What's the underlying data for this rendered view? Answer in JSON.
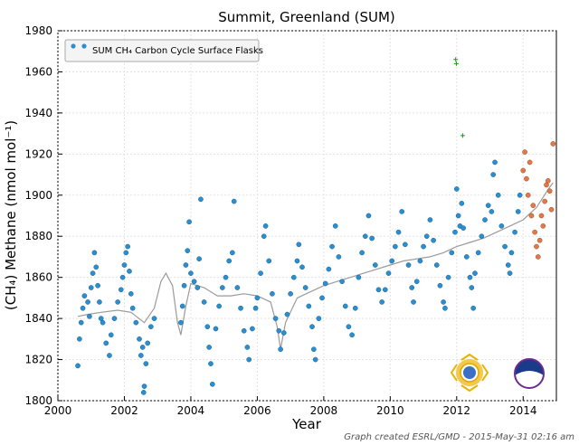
{
  "chart_data": {
    "type": "scatter",
    "title": "Summit, Greenland (SUM)",
    "xlabel": "Year",
    "ylabel": "(CH₄) Methane (nmol mol⁻¹)",
    "xlim": [
      2000,
      2015
    ],
    "ylim": [
      1800,
      1980
    ],
    "x_ticks": [
      2000,
      2002,
      2004,
      2006,
      2008,
      2010,
      2012,
      2014
    ],
    "y_ticks": [
      1800,
      1820,
      1840,
      1860,
      1880,
      1900,
      1920,
      1940,
      1960,
      1980
    ],
    "grid": true,
    "legend_position": "top-left",
    "credit": "Graph created ESRL/GMD - 2015-May-31 02:16 am",
    "colors": {
      "flask_points": "#2a8fd0",
      "preliminary_points": "#e07a4a",
      "flagged_points": "#1a9a1a",
      "smooth_curve": "#9a9a9a"
    },
    "logos": [
      "nsf-logo",
      "noaa-logo"
    ],
    "series": [
      {
        "name": "SUM CH₄ Carbon Cycle Surface Flasks",
        "kind": "points",
        "points": [
          [
            2000.6,
            1817
          ],
          [
            2000.65,
            1830
          ],
          [
            2000.7,
            1838
          ],
          [
            2000.75,
            1845
          ],
          [
            2000.8,
            1851
          ],
          [
            2000.9,
            1848
          ],
          [
            2000.95,
            1841
          ],
          [
            2001.0,
            1855
          ],
          [
            2001.05,
            1862
          ],
          [
            2001.1,
            1872
          ],
          [
            2001.15,
            1865
          ],
          [
            2001.2,
            1856
          ],
          [
            2001.25,
            1848
          ],
          [
            2001.3,
            1840
          ],
          [
            2001.35,
            1838
          ],
          [
            2001.45,
            1828
          ],
          [
            2001.55,
            1822
          ],
          [
            2001.6,
            1832
          ],
          [
            2001.7,
            1840
          ],
          [
            2001.8,
            1848
          ],
          [
            2001.9,
            1854
          ],
          [
            2001.95,
            1860
          ],
          [
            2002.0,
            1866
          ],
          [
            2002.05,
            1872
          ],
          [
            2002.1,
            1875
          ],
          [
            2002.15,
            1863
          ],
          [
            2002.2,
            1852
          ],
          [
            2002.25,
            1845
          ],
          [
            2002.35,
            1838
          ],
          [
            2002.45,
            1830
          ],
          [
            2002.5,
            1822
          ],
          [
            2002.55,
            1826
          ],
          [
            2002.58,
            1804
          ],
          [
            2002.6,
            1807
          ],
          [
            2002.65,
            1818
          ],
          [
            2002.7,
            1828
          ],
          [
            2002.8,
            1836
          ],
          [
            2002.9,
            1840
          ],
          [
            2003.7,
            1838
          ],
          [
            2003.75,
            1846
          ],
          [
            2003.8,
            1856
          ],
          [
            2003.85,
            1866
          ],
          [
            2003.9,
            1873
          ],
          [
            2003.95,
            1887
          ],
          [
            2004.0,
            1862
          ],
          [
            2004.1,
            1858
          ],
          [
            2004.2,
            1855
          ],
          [
            2004.25,
            1869
          ],
          [
            2004.3,
            1898
          ],
          [
            2004.4,
            1848
          ],
          [
            2004.5,
            1836
          ],
          [
            2004.55,
            1826
          ],
          [
            2004.6,
            1818
          ],
          [
            2004.65,
            1808
          ],
          [
            2004.75,
            1835
          ],
          [
            2004.85,
            1846
          ],
          [
            2004.95,
            1855
          ],
          [
            2005.05,
            1860
          ],
          [
            2005.15,
            1868
          ],
          [
            2005.25,
            1872
          ],
          [
            2005.3,
            1897
          ],
          [
            2005.4,
            1855
          ],
          [
            2005.5,
            1845
          ],
          [
            2005.6,
            1834
          ],
          [
            2005.7,
            1826
          ],
          [
            2005.75,
            1820
          ],
          [
            2005.85,
            1835
          ],
          [
            2005.95,
            1845
          ],
          [
            2006.0,
            1850
          ],
          [
            2006.1,
            1862
          ],
          [
            2006.2,
            1880
          ],
          [
            2006.25,
            1885
          ],
          [
            2006.35,
            1868
          ],
          [
            2006.45,
            1852
          ],
          [
            2006.55,
            1840
          ],
          [
            2006.65,
            1834
          ],
          [
            2006.7,
            1825
          ],
          [
            2006.8,
            1833
          ],
          [
            2006.9,
            1842
          ],
          [
            2007.0,
            1852
          ],
          [
            2007.1,
            1860
          ],
          [
            2007.2,
            1868
          ],
          [
            2007.25,
            1876
          ],
          [
            2007.35,
            1865
          ],
          [
            2007.45,
            1855
          ],
          [
            2007.55,
            1846
          ],
          [
            2007.65,
            1836
          ],
          [
            2007.7,
            1825
          ],
          [
            2007.75,
            1820
          ],
          [
            2007.85,
            1840
          ],
          [
            2007.95,
            1850
          ],
          [
            2008.05,
            1857
          ],
          [
            2008.15,
            1864
          ],
          [
            2008.25,
            1875
          ],
          [
            2008.35,
            1885
          ],
          [
            2008.45,
            1870
          ],
          [
            2008.55,
            1858
          ],
          [
            2008.65,
            1846
          ],
          [
            2008.75,
            1836
          ],
          [
            2008.85,
            1832
          ],
          [
            2008.95,
            1845
          ],
          [
            2009.05,
            1860
          ],
          [
            2009.15,
            1872
          ],
          [
            2009.25,
            1880
          ],
          [
            2009.35,
            1890
          ],
          [
            2009.45,
            1879
          ],
          [
            2009.55,
            1866
          ],
          [
            2009.65,
            1854
          ],
          [
            2009.75,
            1848
          ],
          [
            2009.85,
            1854
          ],
          [
            2009.95,
            1862
          ],
          [
            2010.05,
            1868
          ],
          [
            2010.15,
            1875
          ],
          [
            2010.25,
            1882
          ],
          [
            2010.35,
            1892
          ],
          [
            2010.45,
            1876
          ],
          [
            2010.55,
            1866
          ],
          [
            2010.65,
            1855
          ],
          [
            2010.7,
            1848
          ],
          [
            2010.8,
            1858
          ],
          [
            2010.9,
            1868
          ],
          [
            2011.0,
            1875
          ],
          [
            2011.1,
            1880
          ],
          [
            2011.2,
            1888
          ],
          [
            2011.3,
            1878
          ],
          [
            2011.4,
            1866
          ],
          [
            2011.5,
            1856
          ],
          [
            2011.6,
            1848
          ],
          [
            2011.65,
            1845
          ],
          [
            2011.75,
            1860
          ],
          [
            2011.85,
            1872
          ],
          [
            2011.95,
            1882
          ],
          [
            2012.0,
            1903
          ],
          [
            2012.05,
            1890
          ],
          [
            2012.1,
            1885
          ],
          [
            2012.15,
            1896
          ],
          [
            2012.2,
            1884
          ],
          [
            2012.3,
            1870
          ],
          [
            2012.4,
            1860
          ],
          [
            2012.45,
            1855
          ],
          [
            2012.5,
            1845
          ],
          [
            2012.55,
            1862
          ],
          [
            2012.65,
            1872
          ],
          [
            2012.75,
            1880
          ],
          [
            2012.85,
            1888
          ],
          [
            2012.95,
            1895
          ],
          [
            2013.05,
            1892
          ],
          [
            2013.1,
            1910
          ],
          [
            2013.15,
            1916
          ],
          [
            2013.25,
            1900
          ],
          [
            2013.35,
            1885
          ],
          [
            2013.45,
            1875
          ],
          [
            2013.55,
            1866
          ],
          [
            2013.6,
            1862
          ],
          [
            2013.65,
            1872
          ],
          [
            2013.75,
            1882
          ],
          [
            2013.85,
            1892
          ],
          [
            2013.9,
            1900
          ]
        ]
      },
      {
        "name": "preliminary",
        "kind": "points",
        "points": [
          [
            2014.0,
            1912
          ],
          [
            2014.05,
            1921
          ],
          [
            2014.1,
            1908
          ],
          [
            2014.15,
            1900
          ],
          [
            2014.2,
            1916
          ],
          [
            2014.25,
            1890
          ],
          [
            2014.3,
            1895
          ],
          [
            2014.35,
            1882
          ],
          [
            2014.4,
            1875
          ],
          [
            2014.45,
            1870
          ],
          [
            2014.5,
            1878
          ],
          [
            2014.55,
            1890
          ],
          [
            2014.6,
            1885
          ],
          [
            2014.65,
            1897
          ],
          [
            2014.7,
            1905
          ],
          [
            2014.75,
            1907
          ],
          [
            2014.8,
            1902
          ],
          [
            2014.85,
            1893
          ],
          [
            2014.9,
            1925
          ]
        ]
      },
      {
        "name": "flagged",
        "kind": "points",
        "points": [
          [
            2011.97,
            1966
          ],
          [
            2011.99,
            1964
          ],
          [
            2012.18,
            1929
          ]
        ]
      },
      {
        "name": "smoothed fit",
        "kind": "line",
        "points": [
          [
            2000.6,
            1841
          ],
          [
            2000.9,
            1842
          ],
          [
            2001.3,
            1843
          ],
          [
            2001.8,
            1844
          ],
          [
            2002.2,
            1843
          ],
          [
            2002.6,
            1838
          ],
          [
            2002.9,
            1845
          ],
          [
            2003.1,
            1858
          ],
          [
            2003.25,
            1862
          ],
          [
            2003.45,
            1856
          ],
          [
            2003.6,
            1838
          ],
          [
            2003.7,
            1832
          ],
          [
            2003.85,
            1846
          ],
          [
            2004.0,
            1857
          ],
          [
            2004.4,
            1855
          ],
          [
            2004.8,
            1851
          ],
          [
            2005.2,
            1851
          ],
          [
            2005.6,
            1852
          ],
          [
            2006.0,
            1851
          ],
          [
            2006.4,
            1848
          ],
          [
            2006.6,
            1836
          ],
          [
            2006.7,
            1825
          ],
          [
            2006.85,
            1838
          ],
          [
            2007.2,
            1850
          ],
          [
            2007.6,
            1853
          ],
          [
            2008.0,
            1856
          ],
          [
            2008.4,
            1858
          ],
          [
            2008.8,
            1860
          ],
          [
            2009.2,
            1862
          ],
          [
            2009.6,
            1864
          ],
          [
            2010.0,
            1866
          ],
          [
            2010.4,
            1868
          ],
          [
            2010.8,
            1869
          ],
          [
            2011.2,
            1870
          ],
          [
            2011.6,
            1872
          ],
          [
            2012.0,
            1875
          ],
          [
            2012.4,
            1877
          ],
          [
            2012.8,
            1879
          ],
          [
            2013.2,
            1882
          ],
          [
            2013.6,
            1885
          ],
          [
            2014.0,
            1888
          ],
          [
            2014.4,
            1894
          ],
          [
            2014.8,
            1904
          ],
          [
            2014.9,
            1906
          ]
        ]
      }
    ]
  }
}
